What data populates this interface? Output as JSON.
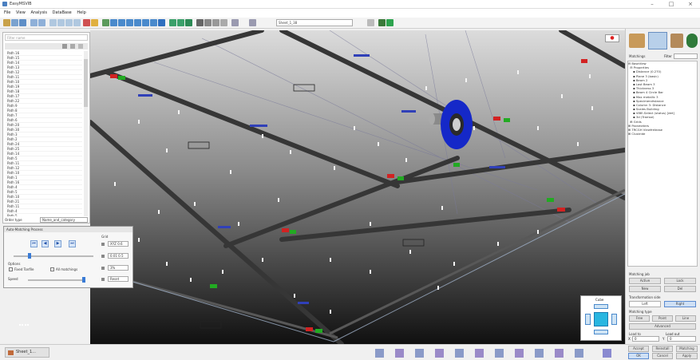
{
  "window": {
    "title": "EasyMSVIB",
    "min": "–",
    "max": "□",
    "close": "×"
  },
  "menu": [
    "File",
    "View",
    "Analysis",
    "DataBase",
    "Help"
  ],
  "toolbar": {
    "combo_value": "Sheet_1_38"
  },
  "left_panel": {
    "filter_placeholder": "Filter name",
    "items": [
      "Path 16",
      "Path 15",
      "Path 14",
      "Path 13",
      "Path 12",
      "Path 11",
      "Path 10",
      "Path 19",
      "Path 18",
      "Path 17",
      "Path 22",
      "Path 9",
      "Path 8",
      "Path 7",
      "Path 6",
      "Path 20",
      "Path 30",
      "Path 3",
      "Path 2",
      "Path 24",
      "Path 25",
      "Path 14",
      "Path 5",
      "Path 11",
      "Path 12",
      "Path 10",
      "Path 1",
      "Path 16",
      "Path 4",
      "Path 5",
      "Path 10",
      "Path 21",
      "Path 11",
      "Path 4",
      "Path 5"
    ],
    "order_label": "Order type",
    "order_value": "Name_and_category"
  },
  "matching_panel": {
    "title": "Auto-Matching Process",
    "play_buttons": [
      "⏮",
      "◀",
      "▶",
      "⏭"
    ],
    "grid_label": "Grid",
    "options_label": "Options",
    "opt1": "Fixed Tonfile",
    "opt2": "All matchings",
    "speed_label": "Speed",
    "grid_buttons": [
      "XYZ 0.6",
      "0.01 0.5",
      "3%",
      "Reset"
    ]
  },
  "right_panel": {
    "matchings_label": "Matchings",
    "filter_label": "Filter",
    "tree": [
      "⊟ BaseView",
      "  ⊟ Properties",
      "     ▪ Distance (0.270)",
      "     ▪ Plane 3 (basic)",
      "     ▪ Beam 2",
      "     ▪ Last Beam 3",
      "     ▪ Thickness 3",
      "     ▪ Beam 4 Circle Bar",
      "     ▪ Max metallic 3",
      "     ▪ Specimendistance",
      "     ▪ Column 3: Distance",
      "     ▪ Scales Building",
      "     ▪ VIBE-Select (status) [det]",
      "     ▪ 3d (Tramse)",
      "  ⊞ Grids",
      "⊞ Parameters",
      "⊞ TRCGH Viewfrelease",
      "⊞ Clustride"
    ],
    "matching_job": "Matching job",
    "job_buttons": [
      "Active",
      "Lock",
      "New",
      "Del"
    ],
    "translation_label": "Transformation side",
    "left": "Left",
    "right": "Right",
    "matching_type": "Matching type",
    "type_buttons": [
      "Free",
      "Point",
      "Line"
    ],
    "advanced": "Advanced",
    "load_to": "Load to",
    "load_out": "Load out",
    "x_label": "X",
    "x_value": "0",
    "y_label": "Y",
    "y_value": "0",
    "bottom_buttons": [
      "Accept",
      "Reinstall",
      "Matching",
      "OK",
      "Cancel",
      "Apply"
    ]
  },
  "cube": {
    "label": "Cube"
  },
  "bottom": {
    "sheet_tab": "Sheet_1..."
  },
  "colors": {
    "accent": "#2a5bd7",
    "disk": "#1528c8",
    "beam": "#3a3a3a",
    "marker_red": "#d22222",
    "marker_green": "#22aa22"
  }
}
